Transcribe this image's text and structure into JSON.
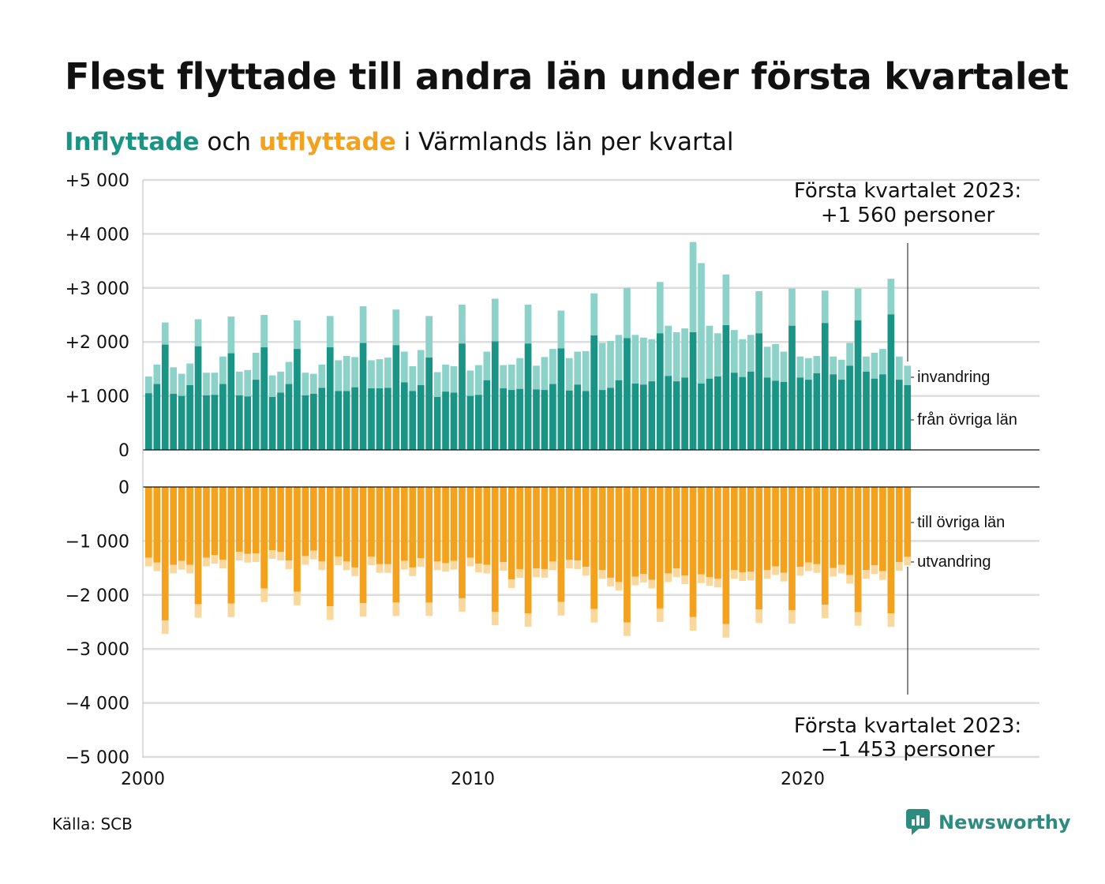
{
  "header": {
    "title": "Flest flyttade till andra län under första kvartalet",
    "subtitle_in": "Inflyttade",
    "subtitle_mid": "och",
    "subtitle_out": "utflyttade",
    "subtitle_rest": "i Värmlands län per kvartal"
  },
  "footer": {
    "source": "Källa: SCB",
    "brand": "Newsworthy"
  },
  "colors": {
    "in_dark": "#1a9485",
    "in_light": "#8dd2c8",
    "out_dark": "#f4a11d",
    "out_light": "#fad79c"
  },
  "chart_data": {
    "type": "bar",
    "x_ticks": [
      2000,
      2010,
      2020
    ],
    "x_tick_labels": [
      "2000",
      "2010",
      "2020"
    ],
    "start_year": 2000,
    "upper_y_ticks": [
      0,
      1000,
      2000,
      3000,
      4000,
      5000
    ],
    "upper_y_tick_labels": [
      "0",
      "+1 000",
      "+2 000",
      "+3 000",
      "+4 000",
      "+5 000"
    ],
    "lower_y_ticks": [
      0,
      -1000,
      -2000,
      -3000,
      -4000,
      -5000
    ],
    "lower_y_tick_labels": [
      "0",
      "−1 000",
      "−2 000",
      "−3 000",
      "−4 000",
      "−5 000"
    ],
    "series_labels": {
      "invandring": "invandring",
      "fran_ovriga_lan": "från övriga län",
      "till_ovriga_lan": "till övriga län",
      "utvandring": "utvandring"
    },
    "annotations": {
      "top_line1": "Första kvartalet 2023:",
      "top_line2": "+1 560 personer",
      "bottom_line1": "Första kvartalet 2023:",
      "bottom_line2": "−1 453 personer"
    },
    "in_total": [
      1360,
      1580,
      2360,
      1530,
      1410,
      1600,
      2420,
      1430,
      1430,
      1730,
      2470,
      1450,
      1480,
      1800,
      2500,
      1380,
      1450,
      1630,
      2400,
      1430,
      1410,
      1580,
      2480,
      1660,
      1740,
      1720,
      2660,
      1660,
      1680,
      1710,
      2600,
      1820,
      1550,
      1850,
      2480,
      1440,
      1580,
      1550,
      2690,
      1470,
      1570,
      1820,
      2800,
      1570,
      1580,
      1700,
      2690,
      1560,
      1720,
      1870,
      2580,
      1700,
      1820,
      1830,
      2900,
      1980,
      2020,
      2130,
      3000,
      2130,
      2080,
      2050,
      3110,
      2300,
      2180,
      2250,
      3850,
      3460,
      2300,
      2160,
      3250,
      2220,
      2050,
      2130,
      2940,
      1910,
      1960,
      1820,
      2990,
      1730,
      1700,
      1740,
      2950,
      1730,
      1670,
      1980,
      2990,
      1730,
      1800,
      1870,
      3170,
      1730,
      1560
    ],
    "in_domestic": [
      1050,
      1220,
      1950,
      1040,
      1000,
      1200,
      1920,
      1010,
      1020,
      1220,
      1790,
      1010,
      990,
      1300,
      1900,
      980,
      1060,
      1220,
      1870,
      1010,
      1040,
      1150,
      1900,
      1090,
      1090,
      1160,
      1980,
      1140,
      1140,
      1150,
      1940,
      1250,
      1090,
      1200,
      1710,
      980,
      1080,
      1060,
      1970,
      1000,
      1020,
      1290,
      2010,
      1140,
      1110,
      1130,
      1970,
      1120,
      1110,
      1220,
      1880,
      1100,
      1210,
      1090,
      2120,
      1110,
      1150,
      1290,
      2070,
      1230,
      1210,
      1270,
      2160,
      1370,
      1270,
      1340,
      2180,
      1230,
      1320,
      1360,
      2310,
      1430,
      1350,
      1450,
      2160,
      1340,
      1280,
      1260,
      2300,
      1340,
      1300,
      1420,
      2350,
      1400,
      1300,
      1560,
      2400,
      1450,
      1320,
      1400,
      2510,
      1300,
      1200
    ],
    "out_total": [
      1470,
      1560,
      2720,
      1600,
      1530,
      1600,
      2420,
      1470,
      1420,
      1510,
      2410,
      1360,
      1400,
      1390,
      2130,
      1330,
      1360,
      1520,
      2190,
      1440,
      1340,
      1540,
      2460,
      1450,
      1540,
      1650,
      2400,
      1450,
      1590,
      1590,
      2390,
      1530,
      1650,
      1480,
      2390,
      1540,
      1570,
      1530,
      2310,
      1470,
      1580,
      1600,
      2560,
      1550,
      1870,
      1680,
      2590,
      1670,
      1680,
      1540,
      2380,
      1510,
      1520,
      1640,
      2510,
      1700,
      1840,
      1920,
      2760,
      1820,
      1770,
      1880,
      2500,
      1760,
      1670,
      1800,
      2660,
      1780,
      1830,
      1860,
      2790,
      1700,
      1740,
      1730,
      2520,
      1700,
      1630,
      1750,
      2530,
      1640,
      1560,
      1590,
      2430,
      1660,
      1600,
      1790,
      2570,
      1700,
      1610,
      1720,
      2590,
      1550,
      1453
    ]
  }
}
